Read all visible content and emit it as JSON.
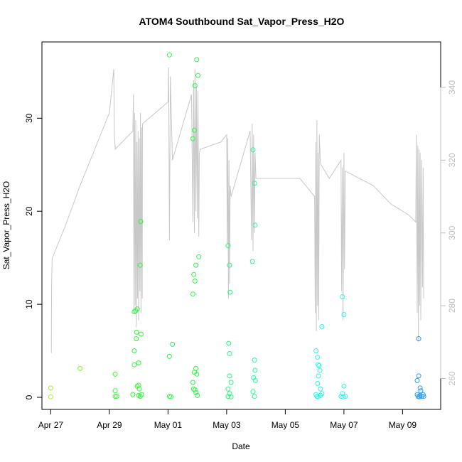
{
  "chart_data": {
    "type": "scatter",
    "title": "ATOM4 Southbound Sat_Vapor_Press_H2O",
    "xlabel": "Date",
    "ylabel": "Sat_Vapor_Press_H2O",
    "x_range_days": [
      26.7,
      40.3
    ],
    "x_ticks": [
      {
        "day": 27,
        "label": "Apr 27"
      },
      {
        "day": 29,
        "label": "Apr 29"
      },
      {
        "day": 31,
        "label": "May 01"
      },
      {
        "day": 33,
        "label": "May 03"
      },
      {
        "day": 35,
        "label": "May 05"
      },
      {
        "day": 37,
        "label": "May 07"
      },
      {
        "day": 39,
        "label": "May 09"
      }
    ],
    "ylim": [
      -1.3,
      38.2
    ],
    "y_ticks": [
      0,
      10,
      20,
      30
    ],
    "y2lim": [
      251.5,
      352.5
    ],
    "y2_ticks": [
      260,
      280,
      300,
      320,
      340
    ],
    "grid": false,
    "series": [
      {
        "axis": "left",
        "style": "open-circle",
        "points": [
          [
            27.0,
            1.0,
            "#9CF52F"
          ],
          [
            27.0,
            0.05,
            "#9CF52F"
          ],
          [
            28.0,
            3.1,
            "#7FF52F"
          ],
          [
            29.2,
            2.5,
            "#3CF53C"
          ],
          [
            29.2,
            0.7,
            "#3CF53C"
          ],
          [
            29.2,
            0.1,
            "#3CF53C"
          ],
          [
            29.25,
            0.1,
            "#3CF53C"
          ],
          [
            29.8,
            0.3,
            "#2FF53C"
          ],
          [
            29.85,
            3.5,
            "#2FF53C"
          ],
          [
            29.85,
            5.0,
            "#2FF53C"
          ],
          [
            29.85,
            9.2,
            "#2FF53C"
          ],
          [
            29.9,
            9.3,
            "#2FF53C"
          ],
          [
            29.95,
            1.2,
            "#2FF53C"
          ],
          [
            29.92,
            6.3,
            "#2FF53C"
          ],
          [
            29.93,
            7.0,
            "#2FF53C"
          ],
          [
            30.0,
            1.3,
            "#2FF53C"
          ],
          [
            30.0,
            3.7,
            "#2FF53C"
          ],
          [
            29.95,
            9.5,
            "#2FF53C"
          ],
          [
            30.0,
            0.2,
            "#2FF53C"
          ],
          [
            30.02,
            0.9,
            "#2FF53C"
          ],
          [
            30.05,
            14.2,
            "#2FF53C"
          ],
          [
            30.07,
            18.9,
            "#2FF53C"
          ],
          [
            30.08,
            6.8,
            "#2FF53C"
          ],
          [
            30.05,
            0.1,
            "#2FF53C"
          ],
          [
            30.1,
            0.3,
            "#2FF53C"
          ],
          [
            31.05,
            36.8,
            "#2FF54A"
          ],
          [
            31.05,
            0.1,
            "#2FF54A"
          ],
          [
            31.1,
            0.05,
            "#2FF54A"
          ],
          [
            31.05,
            4.4,
            "#2FF54A"
          ],
          [
            31.15,
            5.7,
            "#2FF54A"
          ],
          [
            31.85,
            27.8,
            "#2FF54A"
          ],
          [
            31.9,
            28.7,
            "#2FF54A"
          ],
          [
            31.92,
            33.5,
            "#2FF54A"
          ],
          [
            31.98,
            36.3,
            "#2FF54A"
          ],
          [
            32.02,
            34.6,
            "#2FF54A"
          ],
          [
            32.05,
            15.1,
            "#2FF54A"
          ],
          [
            31.95,
            14.2,
            "#2FF54A"
          ],
          [
            31.88,
            13.2,
            "#2FF54A"
          ],
          [
            31.92,
            12.5,
            "#2FF54A"
          ],
          [
            31.85,
            11.1,
            "#2FF54A"
          ],
          [
            31.9,
            2.7,
            "#2FF54A"
          ],
          [
            31.95,
            3.1,
            "#2FF54A"
          ],
          [
            31.98,
            2.5,
            "#2FF54A"
          ],
          [
            31.85,
            1.6,
            "#2FF54A"
          ],
          [
            31.87,
            0.9,
            "#2FF54A"
          ],
          [
            31.92,
            0.8,
            "#2FF54A"
          ],
          [
            31.95,
            0.5,
            "#2FF54A"
          ],
          [
            32.0,
            0.2,
            "#2FF54A"
          ],
          [
            33.05,
            16.3,
            "#2FF57A"
          ],
          [
            33.1,
            14.2,
            "#2FF57A"
          ],
          [
            33.12,
            11.3,
            "#2FF57A"
          ],
          [
            33.07,
            5.8,
            "#2FF57A"
          ],
          [
            33.1,
            4.7,
            "#2FF57A"
          ],
          [
            33.1,
            2.3,
            "#2FF57A"
          ],
          [
            33.05,
            0.9,
            "#2FF57A"
          ],
          [
            33.15,
            1.6,
            "#2FF57A"
          ],
          [
            33.1,
            0.4,
            "#2FF57A"
          ],
          [
            33.05,
            0.1,
            "#2FF57A"
          ],
          [
            33.15,
            0.05,
            "#2FF57A"
          ],
          [
            33.9,
            26.6,
            "#2FF59A"
          ],
          [
            33.95,
            23.0,
            "#2FF59A"
          ],
          [
            33.97,
            18.5,
            "#2FF59A"
          ],
          [
            33.88,
            14.6,
            "#2FF59A"
          ],
          [
            33.95,
            4.0,
            "#2FF59A"
          ],
          [
            33.97,
            2.9,
            "#2FF59A"
          ],
          [
            33.92,
            2.1,
            "#2FF59A"
          ],
          [
            33.98,
            1.8,
            "#2FF59A"
          ],
          [
            33.9,
            0.6,
            "#2FF59A"
          ],
          [
            33.95,
            0.1,
            "#2FF59A"
          ],
          [
            36.05,
            5.0,
            "#2FF5E0"
          ],
          [
            36.1,
            4.3,
            "#2FF5E0"
          ],
          [
            36.12,
            3.5,
            "#2FF5E0"
          ],
          [
            36.15,
            3.4,
            "#2FF5E0"
          ],
          [
            36.18,
            2.9,
            "#2FF5E0"
          ],
          [
            36.13,
            2.3,
            "#2FF5E0"
          ],
          [
            36.1,
            1.5,
            "#2FF5E0"
          ],
          [
            36.2,
            0.9,
            "#2FF5E0"
          ],
          [
            36.25,
            7.6,
            "#2FF5E0"
          ],
          [
            36.05,
            0.3,
            "#2FF5E0"
          ],
          [
            36.08,
            0.1,
            "#2FF5E0"
          ],
          [
            36.12,
            0.05,
            "#2FF5E0"
          ],
          [
            36.2,
            0.2,
            "#2FF5E0"
          ],
          [
            36.25,
            0.4,
            "#2FF5E0"
          ],
          [
            36.95,
            10.8,
            "#2FF5F0"
          ],
          [
            37.0,
            8.9,
            "#2FF5F0"
          ],
          [
            37.0,
            1.2,
            "#2FF5F0"
          ],
          [
            36.95,
            0.4,
            "#2FF5F0"
          ],
          [
            36.9,
            0.1,
            "#2FF5F0"
          ],
          [
            36.97,
            0.05,
            "#2FF5F0"
          ],
          [
            37.05,
            0.1,
            "#2FF5F0"
          ],
          [
            39.55,
            6.3,
            "#2F9CF5"
          ],
          [
            39.55,
            2.3,
            "#2F9CF5"
          ],
          [
            39.5,
            1.8,
            "#2F9CF5"
          ],
          [
            39.6,
            1.0,
            "#2F9CF5"
          ],
          [
            39.62,
            0.7,
            "#2F9CF5"
          ],
          [
            39.5,
            0.3,
            "#2F9CF5"
          ],
          [
            39.53,
            0.1,
            "#2F9CF5"
          ],
          [
            39.57,
            0.05,
            "#2F9CF5"
          ],
          [
            39.6,
            0.2,
            "#2F9CF5"
          ],
          [
            39.65,
            0.1,
            "#2F9CF5"
          ],
          [
            39.7,
            0.3,
            "#2F9CF5"
          ],
          [
            39.72,
            0.1,
            "#2F9CF5"
          ]
        ]
      },
      {
        "axis": "right",
        "style": "line",
        "color": "#c8c8c8",
        "points": [
          [
            27.02,
            267.0
          ],
          [
            27.03,
            286.0
          ],
          [
            27.05,
            293.0
          ],
          [
            27.5,
            302.0
          ],
          [
            28.0,
            313.0
          ],
          [
            28.5,
            323.0
          ],
          [
            29.0,
            333.0
          ],
          [
            29.15,
            345.0
          ],
          [
            29.17,
            327.0
          ],
          [
            29.2,
            323.0
          ],
          [
            29.8,
            328.0
          ],
          [
            29.82,
            338.0
          ],
          [
            29.84,
            278.0
          ],
          [
            29.86,
            333.0
          ],
          [
            29.88,
            280.0
          ],
          [
            29.9,
            331.0
          ],
          [
            29.92,
            274.0
          ],
          [
            29.94,
            325.0
          ],
          [
            29.96,
            282.0
          ],
          [
            29.98,
            328.0
          ],
          [
            30.0,
            276.0
          ],
          [
            30.02,
            326.0
          ],
          [
            30.04,
            284.0
          ],
          [
            30.06,
            333.0
          ],
          [
            30.08,
            278.0
          ],
          [
            30.1,
            329.0
          ],
          [
            30.12,
            282.0
          ],
          [
            30.13,
            330.0
          ],
          [
            31.0,
            336.0
          ],
          [
            31.02,
            345.5
          ],
          [
            31.05,
            298.0
          ],
          [
            31.08,
            343.0
          ],
          [
            31.15,
            320.0
          ],
          [
            31.8,
            338.0
          ],
          [
            31.85,
            303.0
          ],
          [
            31.87,
            342.0
          ],
          [
            31.9,
            300.0
          ],
          [
            31.92,
            345.0
          ],
          [
            31.95,
            306.0
          ],
          [
            31.97,
            340.0
          ],
          [
            32.0,
            304.0
          ],
          [
            32.02,
            339.0
          ],
          [
            32.05,
            299.0
          ],
          [
            32.07,
            322.0
          ],
          [
            32.1,
            323.0
          ],
          [
            32.8,
            325.0
          ],
          [
            33.0,
            327.0
          ],
          [
            33.02,
            297.0
          ],
          [
            33.04,
            326.0
          ],
          [
            33.06,
            282.0
          ],
          [
            33.08,
            320.0
          ],
          [
            33.1,
            286.0
          ],
          [
            33.12,
            313.0
          ],
          [
            33.15,
            310.0
          ],
          [
            33.8,
            328.0
          ],
          [
            33.85,
            298.0
          ],
          [
            33.87,
            330.0
          ],
          [
            33.9,
            295.0
          ],
          [
            33.92,
            327.0
          ],
          [
            33.95,
            300.0
          ],
          [
            33.97,
            322.0
          ],
          [
            34.0,
            315.0
          ],
          [
            35.5,
            315.0
          ],
          [
            36.0,
            310.0
          ],
          [
            36.02,
            278.0
          ],
          [
            36.04,
            325.0
          ],
          [
            36.06,
            273.0
          ],
          [
            36.08,
            331.0
          ],
          [
            36.1,
            280.0
          ],
          [
            36.12,
            322.0
          ],
          [
            36.14,
            276.0
          ],
          [
            36.16,
            327.0
          ],
          [
            36.2,
            319.0
          ],
          [
            36.5,
            315.0
          ],
          [
            36.9,
            320.0
          ],
          [
            36.92,
            284.0
          ],
          [
            36.95,
            318.0
          ],
          [
            36.97,
            276.0
          ],
          [
            37.0,
            322.0
          ],
          [
            37.02,
            290.0
          ],
          [
            37.05,
            317.0
          ],
          [
            38.0,
            313.0
          ],
          [
            38.6,
            308.0
          ],
          [
            39.2,
            305.0
          ],
          [
            39.45,
            303.0
          ],
          [
            39.47,
            327.0
          ],
          [
            39.5,
            278.0
          ],
          [
            39.52,
            324.0
          ],
          [
            39.54,
            270.0
          ],
          [
            39.56,
            323.0
          ],
          [
            39.58,
            280.0
          ],
          [
            39.6,
            322.0
          ],
          [
            39.62,
            276.0
          ],
          [
            39.65,
            320.0
          ],
          [
            39.68,
            285.0
          ],
          [
            39.7,
            318.0
          ],
          [
            39.72,
            282.0
          ]
        ]
      }
    ]
  }
}
